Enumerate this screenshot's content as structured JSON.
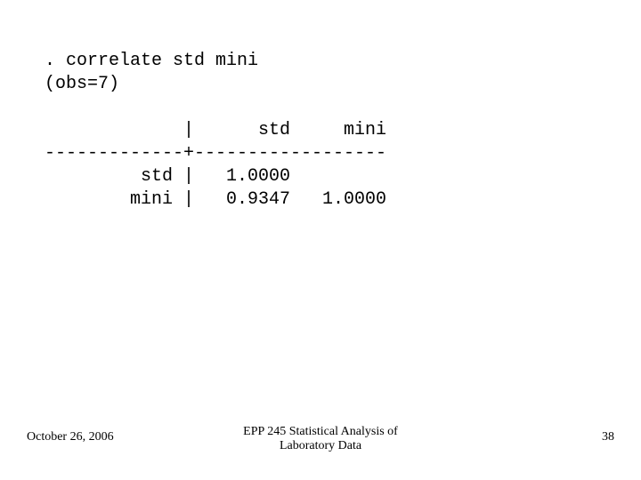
{
  "slide": {
    "command_line": ". correlate std mini",
    "obs_line": "(obs=7)",
    "header_row": "             |      std     mini",
    "divider_row": "-------------+------------------",
    "row_std": "         std |   1.0000",
    "row_mini": "        mini |   0.9347   1.0000"
  },
  "footer": {
    "date": "October 26, 2006",
    "title_line1": "EPP 245 Statistical Analysis of",
    "title_line2": "Laboratory Data",
    "page": "38"
  }
}
